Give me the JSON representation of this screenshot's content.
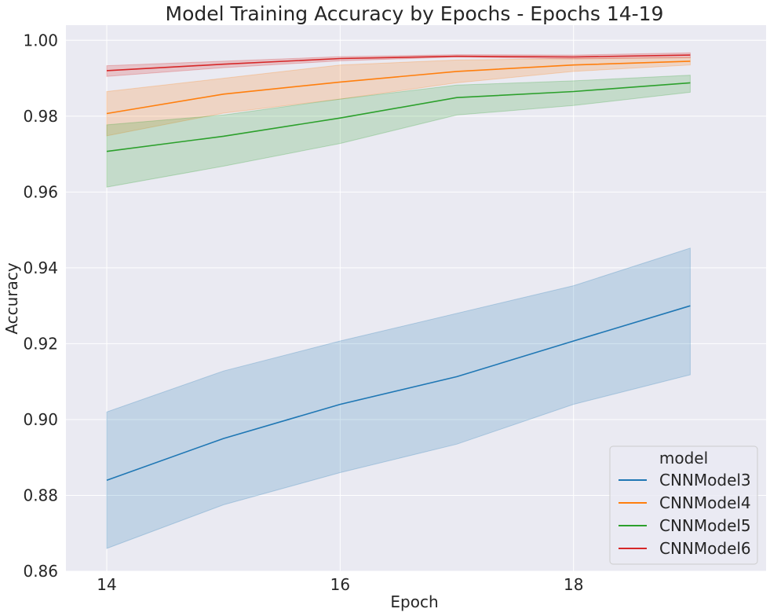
{
  "chart_data": {
    "type": "line",
    "title": "Model Training Accuracy by Epochs - Epochs 14-19",
    "xlabel": "Epoch",
    "ylabel": "Accuracy",
    "xlim": [
      13.65,
      19.65
    ],
    "ylim": [
      0.86,
      1.004
    ],
    "x": [
      14,
      15,
      16,
      17,
      18,
      19
    ],
    "xticks": [
      14,
      16,
      18
    ],
    "yticks": [
      0.86,
      0.88,
      0.9,
      0.92,
      0.94,
      0.96,
      0.98,
      1.0
    ],
    "xtick_labels": [
      "14",
      "16",
      "18"
    ],
    "ytick_labels": [
      "0.86",
      "0.88",
      "0.90",
      "0.92",
      "0.94",
      "0.96",
      "0.98",
      "1.00"
    ],
    "grid": true,
    "background": "#eaeaf2",
    "legend": {
      "title": "model",
      "placement": "bottom-right"
    },
    "series": [
      {
        "name": "CNNModel3",
        "color": "#1f77b4",
        "values": [
          0.884,
          0.895,
          0.904,
          0.9113,
          0.9207,
          0.93
        ],
        "lower": [
          0.866,
          0.8775,
          0.886,
          0.8935,
          0.904,
          0.9118
        ],
        "upper": [
          0.902,
          0.9128,
          0.9207,
          0.928,
          0.9353,
          0.9452
        ]
      },
      {
        "name": "CNNModel4",
        "color": "#ff7f0e",
        "values": [
          0.9807,
          0.9858,
          0.989,
          0.9918,
          0.9935,
          0.9945
        ],
        "lower": [
          0.9748,
          0.9808,
          0.9845,
          0.9888,
          0.9918,
          0.9935
        ],
        "upper": [
          0.9865,
          0.99,
          0.9935,
          0.9948,
          0.9952,
          0.9955
        ]
      },
      {
        "name": "CNNModel5",
        "color": "#2ca02c",
        "values": [
          0.9707,
          0.9747,
          0.9795,
          0.9849,
          0.9865,
          0.9888
        ],
        "lower": [
          0.9613,
          0.9668,
          0.9728,
          0.9803,
          0.9828,
          0.9863
        ],
        "upper": [
          0.9777,
          0.9803,
          0.9845,
          0.9882,
          0.9893,
          0.9908
        ]
      },
      {
        "name": "CNNModel6",
        "color": "#d62728",
        "values": [
          0.992,
          0.9937,
          0.9952,
          0.9958,
          0.9956,
          0.9961
        ],
        "lower": [
          0.9905,
          0.9928,
          0.9946,
          0.9956,
          0.9951,
          0.9954
        ],
        "upper": [
          0.9933,
          0.9945,
          0.9957,
          0.9962,
          0.9961,
          0.9967
        ]
      }
    ]
  }
}
